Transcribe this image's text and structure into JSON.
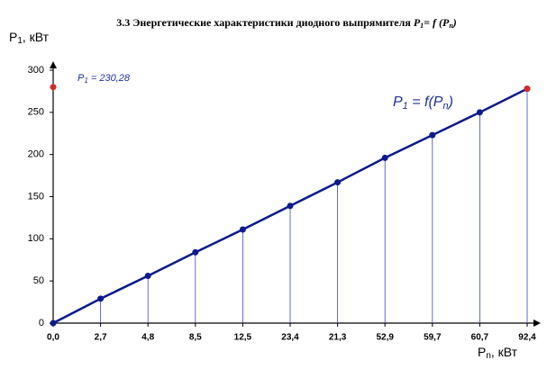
{
  "chart_data": {
    "type": "line",
    "title": {
      "text": "3.3 Энергетические характеристики диодного выпрямителя",
      "p": "P",
      "sub1": "1",
      "eq": "= f (P",
      "sub2": "n",
      "close": ")"
    },
    "y_label": {
      "p": "P",
      "sub": "1",
      "unit": ", кВт"
    },
    "x_label": {
      "p": "P",
      "sub": "n",
      "unit": ", кВт"
    },
    "annotation": {
      "p": "P",
      "sub": "1",
      "text": " = 230,28"
    },
    "curve_label": {
      "p": "P",
      "sub1": "1",
      "eq": " = f(P",
      "sub2": "n",
      "close": ")"
    },
    "categories": [
      "0,0",
      "2,7",
      "4,8",
      "8,5",
      "12,5",
      "23,4",
      "21,3",
      "52,9",
      "59,7",
      "60,7",
      "92,4"
    ],
    "series": [
      {
        "color": "#0d1a8c",
        "values": [
          0,
          29,
          56,
          84,
          111,
          139,
          167,
          196,
          223,
          250,
          278
        ]
      }
    ],
    "red_markers": [
      {
        "index": 0,
        "value": 280
      },
      {
        "index": 10,
        "value": 278
      }
    ],
    "marker_color": "#d22b2b",
    "ylim": [
      0,
      300
    ],
    "yticks": [
      0,
      50,
      100,
      150,
      200,
      250,
      300
    ]
  }
}
